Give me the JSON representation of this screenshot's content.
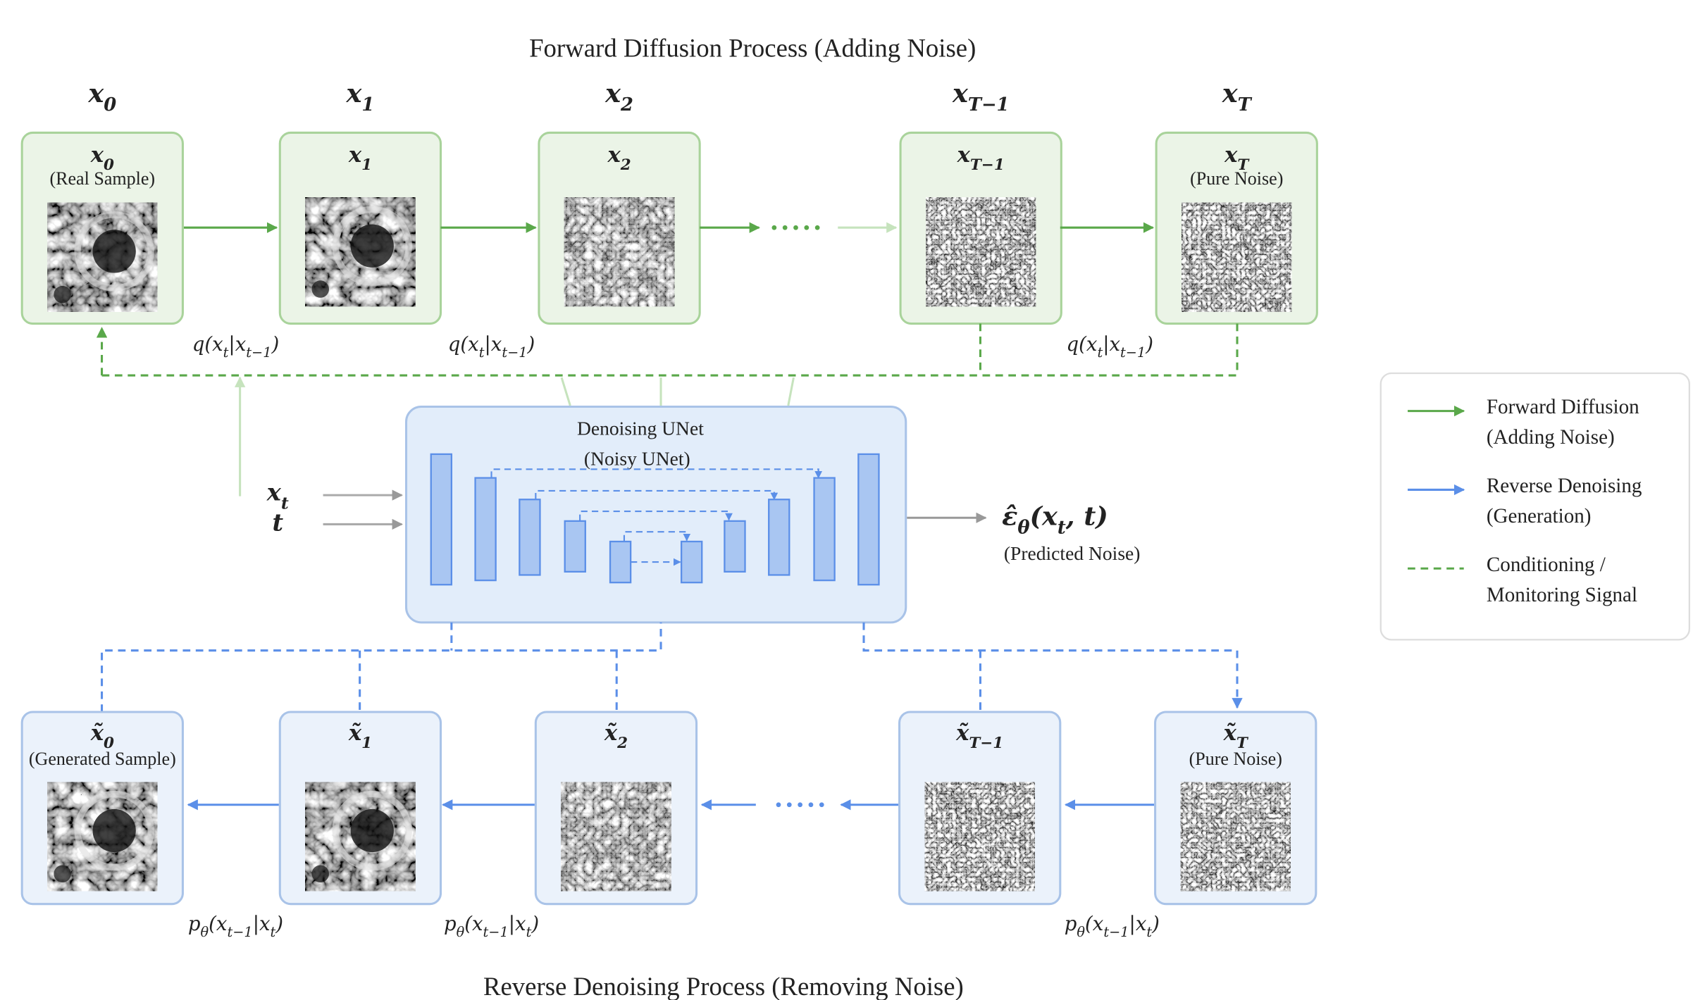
{
  "header": {
    "title": "Forward Diffusion Process  (Adding Noise)"
  },
  "forward": {
    "step_labels": [
      "x_0",
      "x_1",
      "x_2",
      "x_{T−1}",
      "x_T"
    ],
    "nodes": [
      {
        "label": "x_0",
        "sublabel": "(Real Sample)"
      },
      {
        "label": "x_1"
      },
      {
        "label": "x_2"
      },
      {
        "label": "x_{T−1}"
      },
      {
        "label": "x_T",
        "sublabel": "(Pure Noise)"
      }
    ],
    "transitions": [
      "q(x_t|x_{t−1})",
      "q(x_t|x_{t−1})",
      "q(x_t|x_{t−1})"
    ]
  },
  "unet": {
    "title": "Denoising UNet",
    "subtitle": "(Noisy UNet)",
    "inputs": [
      "x_t",
      "t"
    ],
    "output": "ε̂_θ(x_t, t)",
    "output_caption": "(Predicted Noise)"
  },
  "reverse": {
    "nodes": [
      {
        "label": "x̃_0",
        "sublabel": "(Generated Sample)"
      },
      {
        "label": "x̃_1"
      },
      {
        "label": "x̃_2"
      },
      {
        "label": "x̃_{T−1}"
      },
      {
        "label": "x̃_T",
        "sublabel": "(Pure Noise)"
      }
    ],
    "transitions": [
      "p_θ(x_{t−1}|x_t)",
      "p_θ(x_{t−1}|x_t)",
      "p_θ(x_{t−1}|x_t)"
    ]
  },
  "footer": {
    "title": "Reverse Denoising Process  (Removing Noise)"
  },
  "legend": {
    "items": [
      {
        "lines": [
          "Forward Diffusion",
          "(Adding Noise)"
        ]
      },
      {
        "lines": [
          "Reverse Denoising",
          "(Generation)"
        ]
      },
      {
        "lines": [
          "Conditioning /",
          "Monitoring Signal"
        ]
      }
    ]
  }
}
